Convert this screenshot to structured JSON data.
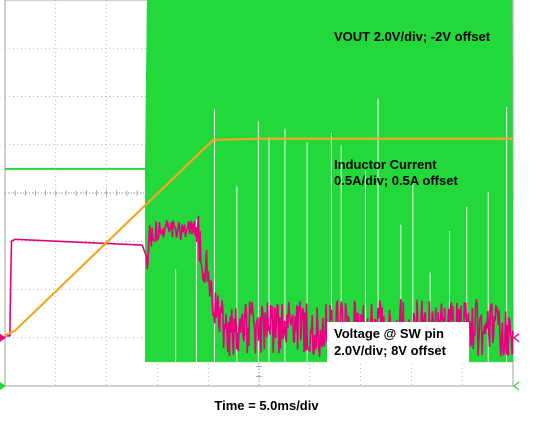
{
  "chart_data": {
    "type": "line",
    "title": "",
    "xlabel": "Time = 5.0ms/div",
    "x_unit": "ms",
    "x_range": [
      0,
      50
    ],
    "grid": true,
    "grid_divisions": {
      "horizontal": 10,
      "vertical": 8
    },
    "series": [
      {
        "name": "VOUT 2.0V/div; -2V offset",
        "color": "#f5a623",
        "scale_per_div": 2.0,
        "unit": "V",
        "x": [
          0,
          1,
          19.5,
          20.5,
          25,
          50
        ],
        "y": [
          0.1,
          0.3,
          7.8,
          8.2,
          8.25,
          8.25
        ]
      },
      {
        "name": "Inductor Current 0.5A/div; 0.5A offset",
        "color": "#e6007e",
        "scale_per_div": 0.5,
        "unit": "A",
        "x": [
          0,
          0.5,
          0.6,
          1,
          13.5,
          14,
          14.2,
          15,
          18.5,
          19,
          20.5,
          21.5,
          50
        ],
        "y": [
          0.02,
          0.02,
          1.0,
          1.02,
          0.96,
          0.82,
          1.05,
          1.1,
          1.15,
          1.05,
          0.4,
          0.1,
          0.1
        ],
        "ripple": [
          [
            14,
            19,
            0.12
          ],
          [
            19,
            21.5,
            0.25
          ],
          [
            21.5,
            50,
            0.3
          ]
        ]
      },
      {
        "name": "Voltage @ SW pin 2.0V/div; 8V offset",
        "color": "#22d83a",
        "scale_per_div": 2.0,
        "unit": "V",
        "x": [
          0,
          13.8,
          14,
          50
        ],
        "y": [
          9.0,
          9.0,
          16.5,
          16.5
        ],
        "switching_low": 1.0,
        "switching_start": 13.8
      }
    ],
    "annotations": {
      "vout": "VOUT 2.0V/div; -2V offset",
      "il_line1": "Inductor Current",
      "il_line2": "0.5A/div; 0.5A offset",
      "sw_line1": "Voltage @ SW pin",
      "sw_line2": "2.0V/div; 8V offset"
    }
  }
}
